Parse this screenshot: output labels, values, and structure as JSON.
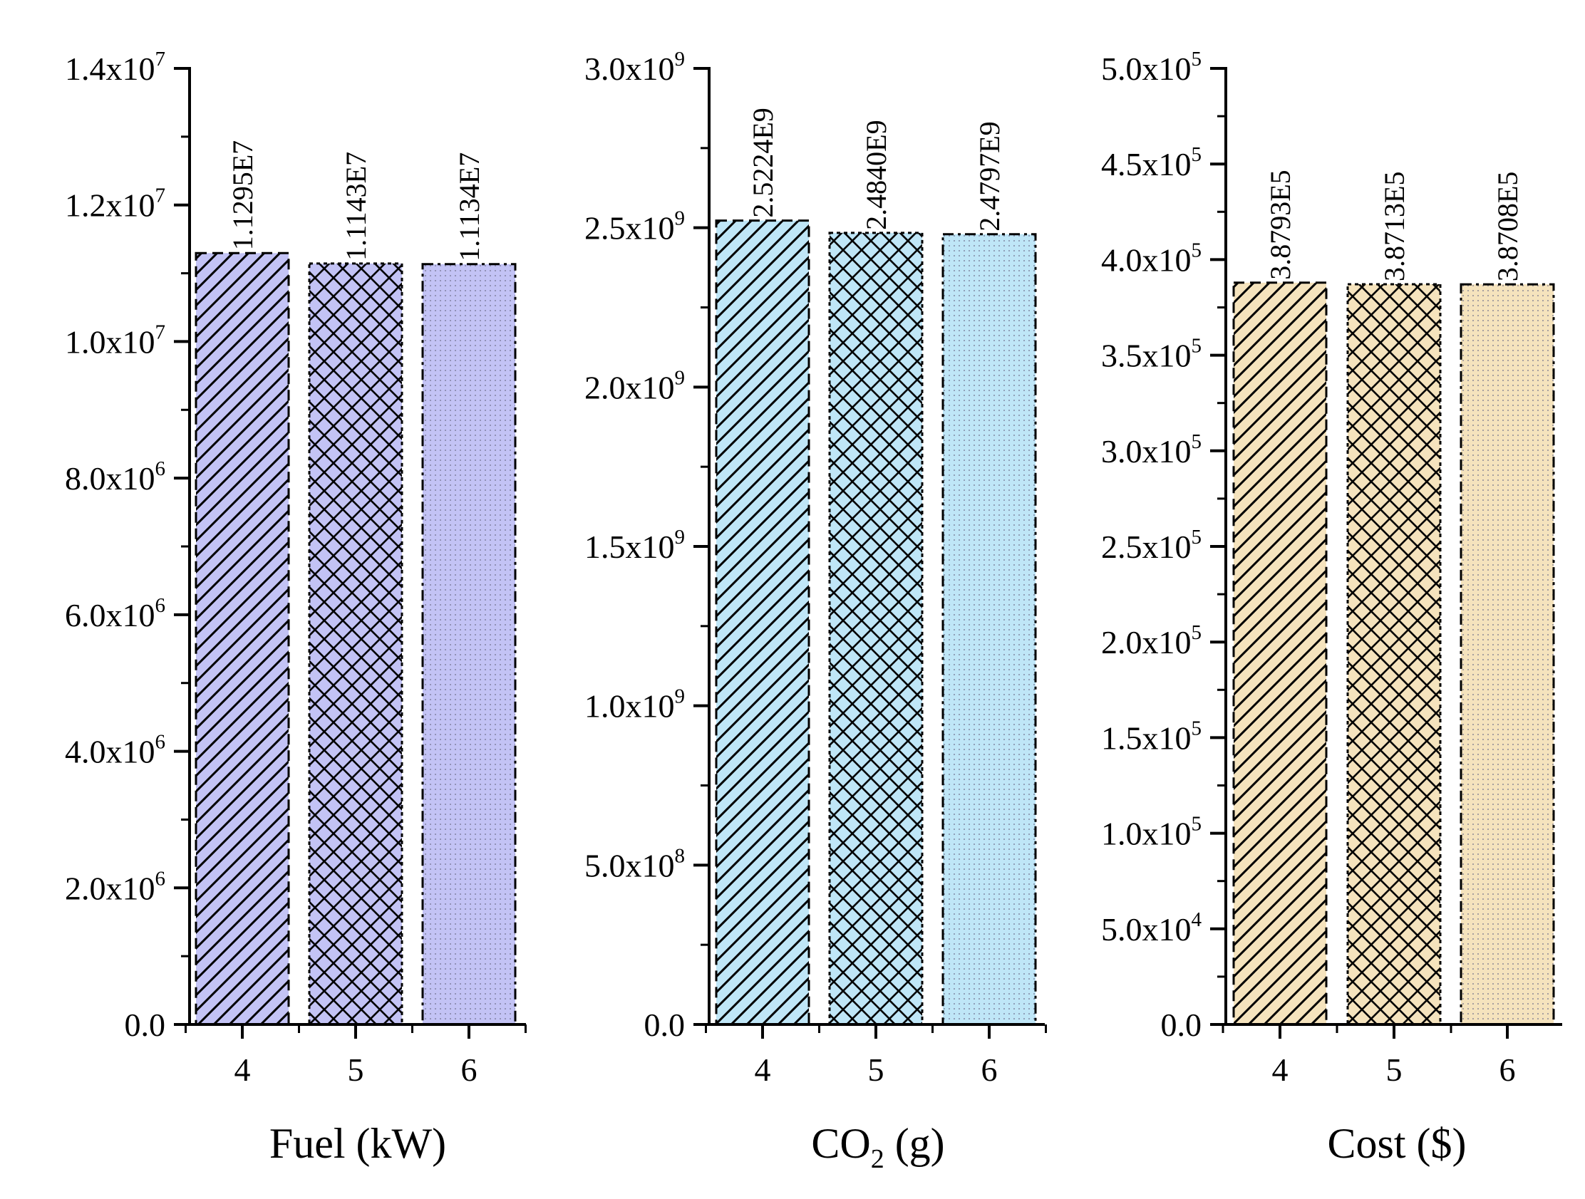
{
  "chart_data": [
    {
      "type": "bar",
      "categories": [
        "4",
        "5",
        "6"
      ],
      "values": [
        11295000,
        11143000,
        11134000
      ],
      "data_labels": [
        "1.1295E7",
        "1.1143E7",
        "1.1134E7"
      ],
      "title": "",
      "xlabel": "Fuel (kW)",
      "ylabel": "",
      "ylim": [
        0,
        14000000
      ],
      "y_ticks": [
        {
          "value": 0,
          "mant": "0.0",
          "exp": ""
        },
        {
          "value": 2000000,
          "mant": "2.0x10",
          "exp": "6"
        },
        {
          "value": 4000000,
          "mant": "4.0x10",
          "exp": "6"
        },
        {
          "value": 6000000,
          "mant": "6.0x10",
          "exp": "6"
        },
        {
          "value": 8000000,
          "mant": "8.0x10",
          "exp": "6"
        },
        {
          "value": 10000000,
          "mant": "1.0x10",
          "exp": "7"
        },
        {
          "value": 12000000,
          "mant": "1.2x10",
          "exp": "7"
        },
        {
          "value": 14000000,
          "mant": "1.4x10",
          "exp": "7"
        }
      ],
      "color": "#c3c3f5",
      "patterns": [
        "diagonal",
        "crosshatch",
        "dots"
      ],
      "grid": false
    },
    {
      "type": "bar",
      "categories": [
        "4",
        "5",
        "6"
      ],
      "values": [
        2522400000,
        2484000000,
        2479700000
      ],
      "data_labels": [
        "2.5224E9",
        "2.4840E9",
        "2.4797E9"
      ],
      "title": "",
      "xlabel_main": "CO",
      "xlabel_sub": "2",
      "xlabel_rest": " (g)",
      "ylabel": "",
      "ylim": [
        0,
        3000000000
      ],
      "y_ticks": [
        {
          "value": 0,
          "mant": "0.0",
          "exp": ""
        },
        {
          "value": 500000000,
          "mant": "5.0x10",
          "exp": "8"
        },
        {
          "value": 1000000000,
          "mant": "1.0x10",
          "exp": "9"
        },
        {
          "value": 1500000000,
          "mant": "1.5x10",
          "exp": "9"
        },
        {
          "value": 2000000000,
          "mant": "2.0x10",
          "exp": "9"
        },
        {
          "value": 2500000000,
          "mant": "2.5x10",
          "exp": "9"
        },
        {
          "value": 3000000000,
          "mant": "3.0x10",
          "exp": "9"
        }
      ],
      "color": "#bfe6f7",
      "patterns": [
        "diagonal",
        "crosshatch",
        "dots"
      ],
      "grid": false
    },
    {
      "type": "bar",
      "categories": [
        "4",
        "5",
        "6"
      ],
      "values": [
        387930,
        387130,
        387080
      ],
      "data_labels": [
        "3.8793E5",
        "3.8713E5",
        "3.8708E5"
      ],
      "title": "",
      "xlabel": "Cost ($)",
      "ylabel": "",
      "ylim": [
        0,
        500000
      ],
      "y_ticks": [
        {
          "value": 0,
          "mant": "0.0",
          "exp": ""
        },
        {
          "value": 50000,
          "mant": "5.0x10",
          "exp": "4"
        },
        {
          "value": 100000,
          "mant": "1.0x10",
          "exp": "5"
        },
        {
          "value": 150000,
          "mant": "1.5x10",
          "exp": "5"
        },
        {
          "value": 200000,
          "mant": "2.0x10",
          "exp": "5"
        },
        {
          "value": 250000,
          "mant": "2.5x10",
          "exp": "5"
        },
        {
          "value": 300000,
          "mant": "3.0x10",
          "exp": "5"
        },
        {
          "value": 350000,
          "mant": "3.5x10",
          "exp": "5"
        },
        {
          "value": 400000,
          "mant": "4.0x10",
          "exp": "5"
        },
        {
          "value": 450000,
          "mant": "4.5x10",
          "exp": "5"
        },
        {
          "value": 500000,
          "mant": "5.0x10",
          "exp": "5"
        }
      ],
      "color": "#f5e3bd",
      "patterns": [
        "diagonal",
        "crosshatch",
        "dots"
      ],
      "grid": false
    }
  ]
}
